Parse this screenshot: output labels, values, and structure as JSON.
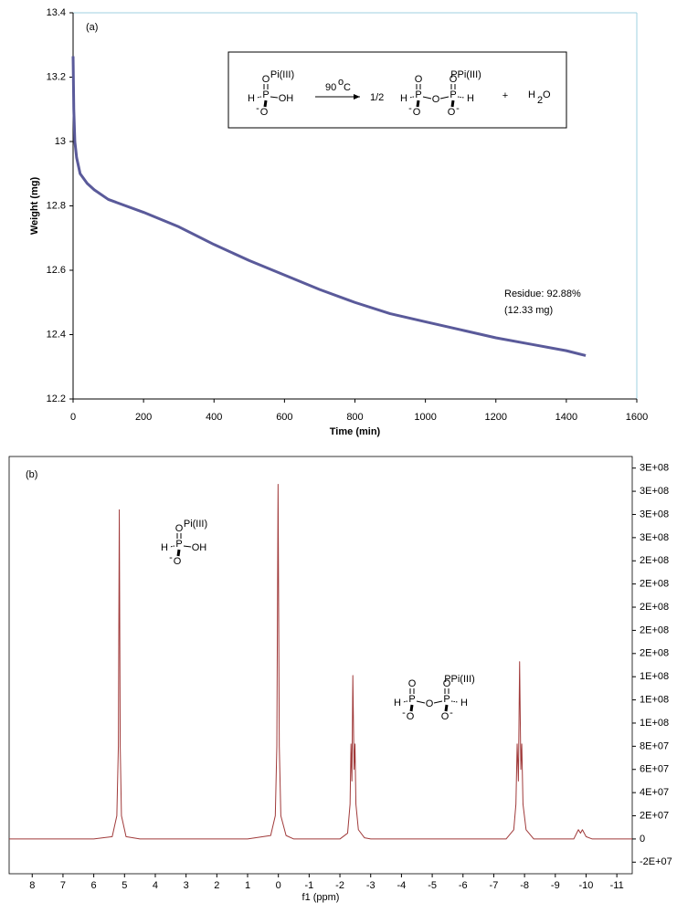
{
  "chart_data": [
    {
      "type": "line",
      "panel_label": "(a)",
      "x_label": "Time (min)",
      "y_label": "Weight (mg)",
      "x": [
        0,
        2,
        5,
        10,
        20,
        40,
        60,
        100,
        200,
        300,
        400,
        500,
        600,
        700,
        800,
        900,
        1000,
        1100,
        1200,
        1300,
        1400,
        1455
      ],
      "series": [
        {
          "color": "#5a5a9a",
          "values": [
            13.265,
            13.1,
            13.0,
            12.95,
            12.9,
            12.87,
            12.85,
            12.82,
            12.78,
            12.735,
            12.68,
            12.63,
            12.585,
            12.54,
            12.5,
            12.465,
            12.44,
            12.415,
            12.39,
            12.37,
            12.35,
            12.335
          ]
        }
      ],
      "xlim": [
        0,
        1600
      ],
      "xticks": [
        0,
        200,
        400,
        600,
        800,
        1000,
        1200,
        1400,
        1600
      ],
      "ylim": [
        12.2,
        13.4
      ],
      "yticks": [
        12.2,
        12.4,
        12.6,
        12.8,
        13,
        13.2,
        13.4
      ],
      "y_axis": "left",
      "grid": false,
      "annotations": [
        "Residue: 92.88%",
        "(12.33 mg)"
      ],
      "scheme": {
        "reactant": {
          "label": "Pi(III)",
          "atoms": [
            "O",
            "H",
            "P",
            "OH",
            "O",
            "-"
          ]
        },
        "arrow_label": [
          "90",
          "o",
          "C"
        ],
        "coefficient": "1/2",
        "product": {
          "label": "PPi(III)",
          "atoms": [
            "O",
            "O",
            "H",
            "P",
            "O",
            "P",
            "H",
            "O",
            "-",
            "O",
            "-"
          ]
        },
        "plus": "+",
        "water": [
          "H",
          "2",
          "O"
        ]
      }
    },
    {
      "type": "line",
      "panel_label": "(b)",
      "x_label": "f1 (ppm)",
      "x": [
        8.75,
        6,
        5.4,
        5.25,
        5.2,
        5.17,
        5.14,
        5.1,
        4.95,
        4.5,
        1,
        0.25,
        0.1,
        0.05,
        0.01,
        -0.03,
        -0.08,
        -0.25,
        -0.5,
        -2.0,
        -2.25,
        -2.33,
        -2.36,
        -2.39,
        -2.42,
        -2.46,
        -2.49,
        -2.52,
        -2.6,
        -2.8,
        -3,
        -7.4,
        -7.65,
        -7.72,
        -7.76,
        -7.8,
        -7.84,
        -7.88,
        -7.91,
        -7.95,
        -8.05,
        -8.3,
        -9.6,
        -9.75,
        -9.82,
        -9.88,
        -10,
        -10.2,
        -11.5
      ],
      "series": [
        {
          "color": "#a03a3a",
          "values": [
            0,
            0,
            2000000,
            20000000,
            80000000,
            284000000,
            80000000,
            20000000,
            2000000,
            0,
            0,
            3000000,
            20000000,
            80000000,
            306000000,
            80000000,
            20000000,
            3000000,
            0,
            0,
            5000000,
            30000000,
            82000000,
            50000000,
            141000000,
            60000000,
            82000000,
            30000000,
            8000000,
            1000000,
            0,
            0,
            8000000,
            30000000,
            82000000,
            50000000,
            153000000,
            60000000,
            82000000,
            30000000,
            8000000,
            0,
            0,
            8000000,
            5000000,
            8000000,
            2000000,
            0,
            0
          ]
        }
      ],
      "xlim": [
        8.75,
        -11.5
      ],
      "xticks": [
        8,
        7,
        6,
        5,
        4,
        3,
        2,
        1,
        0,
        -1,
        -2,
        -3,
        -4,
        -5,
        -6,
        -7,
        -8,
        -9,
        -10,
        -11
      ],
      "ylim": [
        -30000000,
        330000000
      ],
      "yticks": [
        {
          "value": -20000000,
          "label": "-2E+07"
        },
        0,
        {
          "value": 20000000,
          "label": "2E+07"
        },
        {
          "value": 40000000,
          "label": "4E+07"
        },
        {
          "value": 60000000,
          "label": "6E+07"
        },
        {
          "value": 80000000,
          "label": "8E+07"
        },
        {
          "value": 100000000,
          "label": "1E+08"
        },
        {
          "value": 120000000,
          "label": "1E+08"
        },
        {
          "value": 140000000,
          "label": "1E+08"
        },
        {
          "value": 160000000,
          "label": "2E+08"
        },
        {
          "value": 180000000,
          "label": "2E+08"
        },
        {
          "value": 200000000,
          "label": "2E+08"
        },
        {
          "value": 220000000,
          "label": "2E+08"
        },
        {
          "value": 240000000,
          "label": "2E+08"
        },
        {
          "value": 260000000,
          "label": "3E+08"
        },
        {
          "value": 280000000,
          "label": "3E+08"
        },
        {
          "value": 300000000,
          "label": "3E+08"
        },
        {
          "value": 320000000,
          "label": "3E+08"
        }
      ],
      "y_axis": "right",
      "grid": false,
      "molecules": [
        {
          "label": "Pi(III)",
          "atoms": [
            "O",
            "H",
            "P",
            "OH",
            "O",
            "-"
          ]
        },
        {
          "label": "PPi(III)",
          "atoms": [
            "O",
            "O",
            "H",
            "P",
            "O",
            "P",
            "H",
            "O",
            "-",
            "O",
            "-"
          ]
        }
      ]
    }
  ]
}
